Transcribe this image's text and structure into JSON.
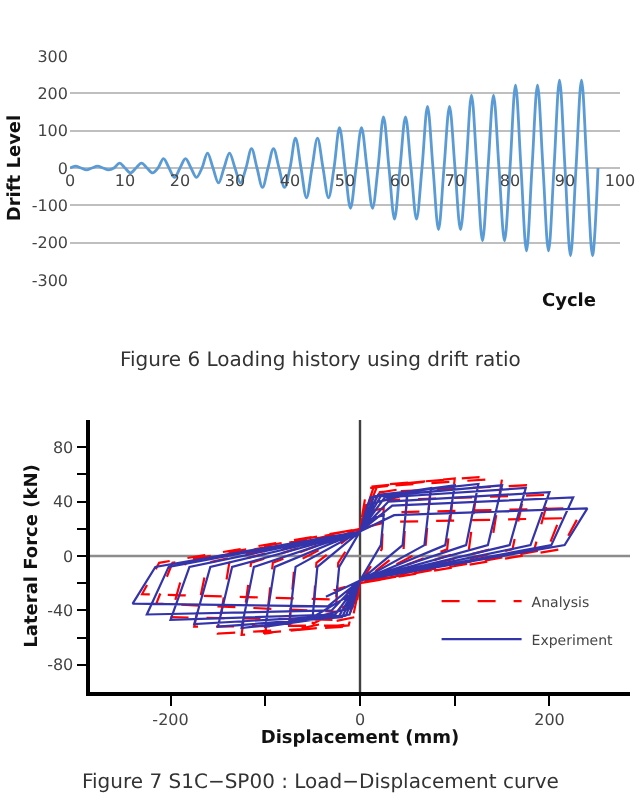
{
  "chart_data": [
    {
      "type": "line",
      "xlabel": "Cycle",
      "ylabel": "Drift Level",
      "annotations": [
        "Figure 6 Loading history using drift ratio"
      ],
      "x": [
        0,
        1,
        2,
        3,
        4,
        5,
        6,
        7,
        8,
        9,
        10,
        11,
        12,
        13,
        14,
        15,
        16,
        17,
        18,
        19,
        20,
        21,
        22,
        23,
        24,
        25,
        26,
        27,
        28,
        29,
        30,
        31,
        32,
        33,
        34,
        35,
        36,
        37,
        38,
        39,
        40,
        41,
        42,
        43,
        44,
        45,
        46,
        47,
        48,
        49,
        50,
        51,
        52,
        53,
        54,
        55,
        56,
        57,
        58,
        59,
        60,
        61,
        62,
        63,
        64,
        65,
        66,
        67,
        68,
        69,
        70,
        71,
        72,
        73,
        74,
        75,
        76,
        77,
        78,
        79,
        80,
        81,
        82,
        83,
        84,
        85,
        86,
        87,
        88,
        89,
        90,
        91,
        92,
        93,
        94,
        95,
        96
      ],
      "series": [
        {
          "color": "#5b9bd5",
          "line_style": "solid",
          "values": [
            0,
            5,
            0,
            -5,
            0,
            5,
            0,
            -5,
            0,
            13,
            0,
            -13,
            0,
            13,
            0,
            -13,
            0,
            25,
            0,
            -25,
            0,
            25,
            0,
            -25,
            0,
            40,
            0,
            -40,
            0,
            40,
            0,
            -40,
            0,
            52,
            0,
            -52,
            0,
            52,
            0,
            -52,
            0,
            80,
            0,
            -80,
            0,
            80,
            0,
            -80,
            0,
            108,
            0,
            -108,
            0,
            108,
            0,
            -108,
            0,
            137,
            0,
            -137,
            0,
            137,
            0,
            -137,
            0,
            165,
            0,
            -165,
            0,
            165,
            0,
            -165,
            0,
            195,
            0,
            -195,
            0,
            195,
            0,
            -195,
            0,
            222,
            0,
            -222,
            0,
            222,
            0,
            -222,
            0,
            235,
            0,
            -235,
            0,
            235,
            0,
            -235,
            0
          ]
        }
      ],
      "xlim": [
        0,
        100
      ],
      "ylim": [
        -300,
        300
      ],
      "xticks": [
        0,
        10,
        20,
        30,
        40,
        50,
        60,
        70,
        80,
        90,
        100
      ],
      "yticks": [
        -300,
        -200,
        -100,
        0,
        100,
        200,
        300
      ],
      "grid": "y"
    },
    {
      "type": "line",
      "xlabel": "Displacement (mm)",
      "ylabel": "Lateral Force (kN)",
      "annotations": [
        "Figure 7 S1C−SP00 : Load−Displacement curve"
      ],
      "series": [
        {
          "name": "Analysis",
          "color": "#ff0000",
          "line_style": "dashed",
          "x": [
            -25,
            -23,
            0,
            3,
            25,
            23,
            0,
            -3,
            -50,
            -46,
            0,
            6,
            50,
            46,
            0,
            -6,
            -75,
            -69,
            0,
            9,
            75,
            69,
            0,
            -9,
            -100,
            -92,
            0,
            12,
            100,
            92,
            0,
            -12,
            -125,
            -115,
            0,
            15,
            125,
            115,
            0,
            -15,
            -150,
            -138,
            0,
            18,
            150,
            138,
            0,
            -18,
            -175,
            -161,
            0,
            21,
            175,
            161,
            0,
            -21,
            -200,
            -184,
            0,
            24,
            200,
            184,
            0,
            -24,
            -215,
            -198,
            0,
            26,
            215,
            198,
            0,
            -26,
            -230,
            -212,
            0,
            28,
            230,
            212,
            0,
            -28
          ],
          "values": [
            -35,
            -5,
            20,
            32,
            35,
            5,
            -20,
            -32,
            -50,
            -5,
            20,
            45,
            50,
            5,
            -20,
            -45,
            -55,
            -5,
            20,
            50,
            55,
            5,
            -20,
            -50,
            -57,
            -5,
            20,
            51,
            57,
            5,
            -20,
            -51,
            -58,
            -5,
            20,
            52,
            58,
            5,
            -20,
            -52,
            -57,
            -5,
            20,
            51,
            57,
            5,
            -20,
            -51,
            -52,
            -5,
            20,
            47,
            52,
            5,
            -20,
            -47,
            -45,
            -5,
            20,
            41,
            45,
            5,
            -20,
            -41,
            -35,
            -5,
            20,
            32,
            35,
            5,
            -20,
            -32,
            -28,
            -5,
            20,
            25,
            28,
            5,
            -20,
            -25
          ]
        },
        {
          "name": "Experiment",
          "color": "#3333aa",
          "line_style": "solid",
          "x": [
            -25,
            -22,
            0,
            4,
            25,
            22,
            0,
            -4,
            -50,
            -45,
            0,
            8,
            50,
            45,
            0,
            -8,
            -75,
            -68,
            0,
            11,
            75,
            68,
            0,
            -11,
            -100,
            -90,
            0,
            15,
            100,
            90,
            0,
            -15,
            -125,
            -112,
            0,
            19,
            125,
            112,
            0,
            -19,
            -150,
            -135,
            0,
            22,
            150,
            135,
            0,
            -22,
            -175,
            -158,
            0,
            26,
            175,
            158,
            0,
            -26,
            -200,
            -180,
            0,
            30,
            200,
            180,
            0,
            -30,
            -225,
            -202,
            0,
            34,
            225,
            202,
            0,
            -34,
            -240,
            -216,
            0,
            36,
            240,
            216,
            0,
            -36
          ],
          "values": [
            -30,
            -8,
            18,
            26,
            30,
            8,
            -18,
            -26,
            -45,
            -8,
            18,
            38,
            45,
            8,
            -18,
            -38,
            -50,
            -8,
            18,
            43,
            50,
            8,
            -18,
            -43,
            -52,
            -8,
            18,
            44,
            52,
            8,
            -18,
            -44,
            -53,
            -8,
            18,
            45,
            53,
            8,
            -18,
            -45,
            -52,
            -8,
            18,
            44,
            52,
            8,
            -18,
            -44,
            -50,
            -8,
            18,
            43,
            50,
            8,
            -18,
            -43,
            -47,
            -8,
            18,
            40,
            47,
            8,
            -18,
            -40,
            -43,
            -8,
            18,
            37,
            43,
            8,
            -18,
            -37,
            -35,
            -8,
            18,
            30,
            35,
            8,
            -18,
            -30
          ]
        }
      ],
      "xlim": [
        -285,
        285
      ],
      "ylim": [
        -100,
        100
      ],
      "xticks": [
        -200,
        {
          "value": -100,
          "label": null
        },
        0,
        {
          "value": 100,
          "label": null
        },
        200
      ],
      "yticks": [
        -80,
        {
          "value": -60,
          "label": null
        },
        -40,
        {
          "value": -20,
          "label": null
        },
        0,
        {
          "value": 20,
          "label": null
        },
        40,
        {
          "value": 60,
          "label": null
        },
        80
      ],
      "ref_lines": [
        {
          "axis": "x",
          "value": 0,
          "color": "#404040"
        },
        {
          "axis": "y",
          "value": 0,
          "color": "#8c8c8c"
        }
      ],
      "legend": "bottom right"
    }
  ]
}
